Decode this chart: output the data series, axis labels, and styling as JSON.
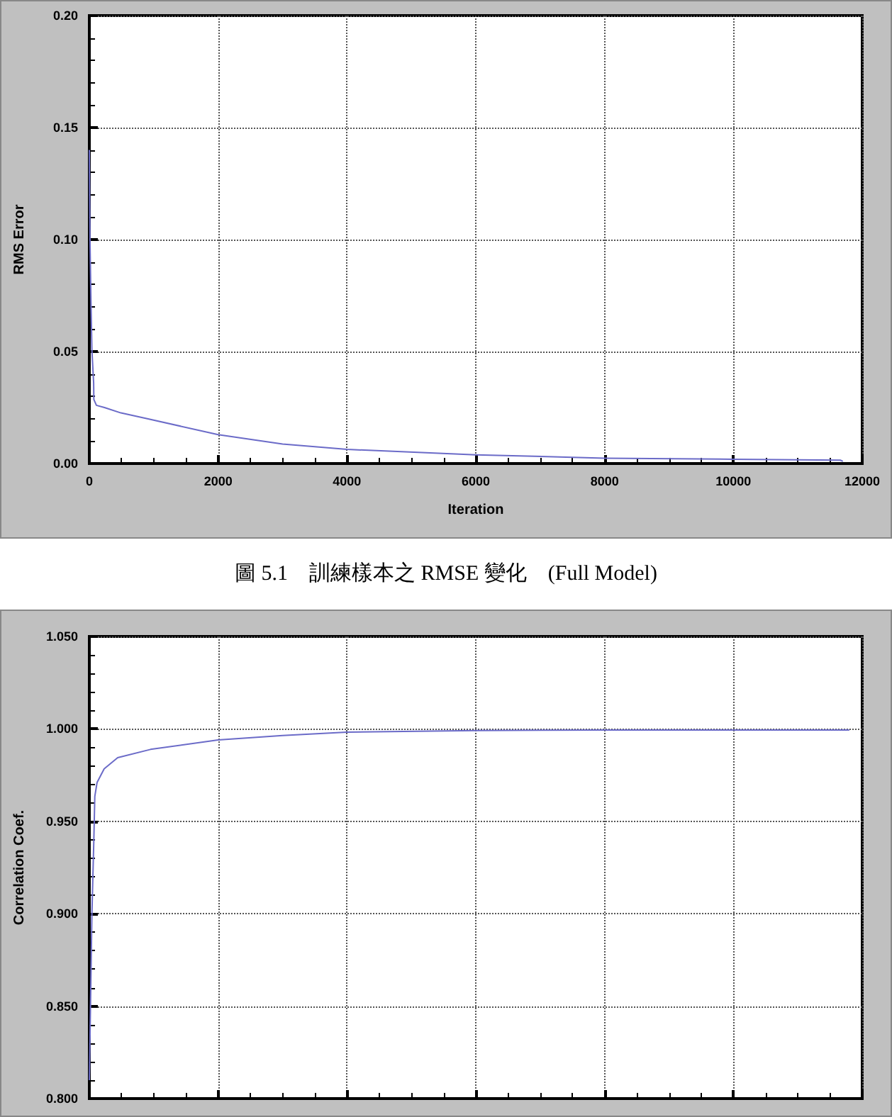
{
  "chart_data": [
    {
      "type": "line",
      "xlabel": "Iteration",
      "ylabel": "RMS Error",
      "annotations": [
        "圖 5.1　訓練樣本之 RMSE 變化　(Full Model)"
      ],
      "xlim": [
        0,
        12000
      ],
      "xticks": [
        0,
        2000,
        4000,
        6000,
        8000,
        10000,
        12000
      ],
      "ylim": [
        0,
        0.2
      ],
      "yticks": [
        {
          "value": 0,
          "label": "0.00"
        },
        {
          "value": 0.05,
          "label": "0.05"
        },
        {
          "value": 0.1,
          "label": "0.10"
        },
        {
          "value": 0.15,
          "label": "0.15"
        },
        {
          "value": 0.2,
          "label": "0.20"
        }
      ],
      "grid": true,
      "marker": "none",
      "line_style": "solid",
      "series": [
        {
          "color": "#6b6bc8",
          "x": [
            0,
            10,
            25,
            40,
            67,
            70,
            110,
            235,
            490,
            900,
            2000,
            3000,
            4000,
            6000,
            8000,
            10000,
            11660,
            11700
          ],
          "values": [
            0.14,
            0.1,
            0.0726,
            0.0505,
            0.036,
            0.0286,
            0.026,
            0.025,
            0.0226,
            0.02,
            0.0129,
            0.0087,
            0.0063,
            0.0039,
            0.0024,
            0.0019,
            0.0015,
            0.001
          ]
        }
      ]
    },
    {
      "type": "line",
      "ylabel": "Correlation Coef.",
      "tick_labels": "y",
      "xlim": [
        0,
        12000
      ],
      "xticks": [
        {
          "value": 0,
          "label": null
        },
        {
          "value": 2000,
          "label": null
        },
        {
          "value": 4000,
          "label": null
        },
        {
          "value": 6000,
          "label": null
        },
        {
          "value": 8000,
          "label": null
        },
        {
          "value": 10000,
          "label": null
        },
        {
          "value": 12000,
          "label": null
        }
      ],
      "ylim": [
        0.8,
        1.05
      ],
      "yticks": [
        {
          "value": 0.8,
          "label": "0.800"
        },
        {
          "value": 0.85,
          "label": "0.850"
        },
        {
          "value": 0.9,
          "label": "0.900"
        },
        {
          "value": 0.95,
          "label": "0.950"
        },
        {
          "value": 1,
          "label": "1.000"
        },
        {
          "value": 1.05,
          "label": "1.050"
        }
      ],
      "grid": true,
      "marker": "none",
      "line_style": "solid",
      "series": [
        {
          "color": "#6b6bc8",
          "x": [
            0,
            40,
            70,
            85,
            120,
            230,
            440,
            950,
            2000,
            3000,
            4000,
            6000,
            8000,
            11800
          ],
          "values": [
            0.81,
            0.9,
            0.94,
            0.9635,
            0.971,
            0.9784,
            0.9844,
            0.9889,
            0.994,
            0.9964,
            0.9982,
            0.9991,
            0.9994,
            0.9994
          ]
        }
      ]
    }
  ]
}
